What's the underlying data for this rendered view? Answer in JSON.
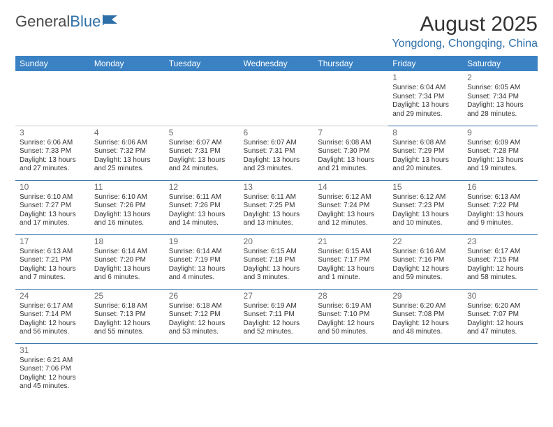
{
  "logo": {
    "part1": "General",
    "part2": "Blue"
  },
  "header": {
    "title": "August 2025",
    "subtitle": "Yongdong, Chongqing, China"
  },
  "calendar": {
    "type": "table",
    "header_bg": "#3b82c4",
    "header_text_color": "#ffffff",
    "cell_border_color": "#2f6fa8",
    "font_family": "Arial",
    "columns": [
      "Sunday",
      "Monday",
      "Tuesday",
      "Wednesday",
      "Thursday",
      "Friday",
      "Saturday"
    ],
    "weeks": [
      [
        null,
        null,
        null,
        null,
        null,
        {
          "n": "1",
          "sr": "Sunrise: 6:04 AM",
          "ss": "Sunset: 7:34 PM",
          "dl": "Daylight: 13 hours and 29 minutes."
        },
        {
          "n": "2",
          "sr": "Sunrise: 6:05 AM",
          "ss": "Sunset: 7:34 PM",
          "dl": "Daylight: 13 hours and 28 minutes."
        }
      ],
      [
        {
          "n": "3",
          "sr": "Sunrise: 6:06 AM",
          "ss": "Sunset: 7:33 PM",
          "dl": "Daylight: 13 hours and 27 minutes."
        },
        {
          "n": "4",
          "sr": "Sunrise: 6:06 AM",
          "ss": "Sunset: 7:32 PM",
          "dl": "Daylight: 13 hours and 25 minutes."
        },
        {
          "n": "5",
          "sr": "Sunrise: 6:07 AM",
          "ss": "Sunset: 7:31 PM",
          "dl": "Daylight: 13 hours and 24 minutes."
        },
        {
          "n": "6",
          "sr": "Sunrise: 6:07 AM",
          "ss": "Sunset: 7:31 PM",
          "dl": "Daylight: 13 hours and 23 minutes."
        },
        {
          "n": "7",
          "sr": "Sunrise: 6:08 AM",
          "ss": "Sunset: 7:30 PM",
          "dl": "Daylight: 13 hours and 21 minutes."
        },
        {
          "n": "8",
          "sr": "Sunrise: 6:08 AM",
          "ss": "Sunset: 7:29 PM",
          "dl": "Daylight: 13 hours and 20 minutes."
        },
        {
          "n": "9",
          "sr": "Sunrise: 6:09 AM",
          "ss": "Sunset: 7:28 PM",
          "dl": "Daylight: 13 hours and 19 minutes."
        }
      ],
      [
        {
          "n": "10",
          "sr": "Sunrise: 6:10 AM",
          "ss": "Sunset: 7:27 PM",
          "dl": "Daylight: 13 hours and 17 minutes."
        },
        {
          "n": "11",
          "sr": "Sunrise: 6:10 AM",
          "ss": "Sunset: 7:26 PM",
          "dl": "Daylight: 13 hours and 16 minutes."
        },
        {
          "n": "12",
          "sr": "Sunrise: 6:11 AM",
          "ss": "Sunset: 7:26 PM",
          "dl": "Daylight: 13 hours and 14 minutes."
        },
        {
          "n": "13",
          "sr": "Sunrise: 6:11 AM",
          "ss": "Sunset: 7:25 PM",
          "dl": "Daylight: 13 hours and 13 minutes."
        },
        {
          "n": "14",
          "sr": "Sunrise: 6:12 AM",
          "ss": "Sunset: 7:24 PM",
          "dl": "Daylight: 13 hours and 12 minutes."
        },
        {
          "n": "15",
          "sr": "Sunrise: 6:12 AM",
          "ss": "Sunset: 7:23 PM",
          "dl": "Daylight: 13 hours and 10 minutes."
        },
        {
          "n": "16",
          "sr": "Sunrise: 6:13 AM",
          "ss": "Sunset: 7:22 PM",
          "dl": "Daylight: 13 hours and 9 minutes."
        }
      ],
      [
        {
          "n": "17",
          "sr": "Sunrise: 6:13 AM",
          "ss": "Sunset: 7:21 PM",
          "dl": "Daylight: 13 hours and 7 minutes."
        },
        {
          "n": "18",
          "sr": "Sunrise: 6:14 AM",
          "ss": "Sunset: 7:20 PM",
          "dl": "Daylight: 13 hours and 6 minutes."
        },
        {
          "n": "19",
          "sr": "Sunrise: 6:14 AM",
          "ss": "Sunset: 7:19 PM",
          "dl": "Daylight: 13 hours and 4 minutes."
        },
        {
          "n": "20",
          "sr": "Sunrise: 6:15 AM",
          "ss": "Sunset: 7:18 PM",
          "dl": "Daylight: 13 hours and 3 minutes."
        },
        {
          "n": "21",
          "sr": "Sunrise: 6:15 AM",
          "ss": "Sunset: 7:17 PM",
          "dl": "Daylight: 13 hours and 1 minute."
        },
        {
          "n": "22",
          "sr": "Sunrise: 6:16 AM",
          "ss": "Sunset: 7:16 PM",
          "dl": "Daylight: 12 hours and 59 minutes."
        },
        {
          "n": "23",
          "sr": "Sunrise: 6:17 AM",
          "ss": "Sunset: 7:15 PM",
          "dl": "Daylight: 12 hours and 58 minutes."
        }
      ],
      [
        {
          "n": "24",
          "sr": "Sunrise: 6:17 AM",
          "ss": "Sunset: 7:14 PM",
          "dl": "Daylight: 12 hours and 56 minutes."
        },
        {
          "n": "25",
          "sr": "Sunrise: 6:18 AM",
          "ss": "Sunset: 7:13 PM",
          "dl": "Daylight: 12 hours and 55 minutes."
        },
        {
          "n": "26",
          "sr": "Sunrise: 6:18 AM",
          "ss": "Sunset: 7:12 PM",
          "dl": "Daylight: 12 hours and 53 minutes."
        },
        {
          "n": "27",
          "sr": "Sunrise: 6:19 AM",
          "ss": "Sunset: 7:11 PM",
          "dl": "Daylight: 12 hours and 52 minutes."
        },
        {
          "n": "28",
          "sr": "Sunrise: 6:19 AM",
          "ss": "Sunset: 7:10 PM",
          "dl": "Daylight: 12 hours and 50 minutes."
        },
        {
          "n": "29",
          "sr": "Sunrise: 6:20 AM",
          "ss": "Sunset: 7:08 PM",
          "dl": "Daylight: 12 hours and 48 minutes."
        },
        {
          "n": "30",
          "sr": "Sunrise: 6:20 AM",
          "ss": "Sunset: 7:07 PM",
          "dl": "Daylight: 12 hours and 47 minutes."
        }
      ],
      [
        {
          "n": "31",
          "sr": "Sunrise: 6:21 AM",
          "ss": "Sunset: 7:06 PM",
          "dl": "Daylight: 12 hours and 45 minutes."
        },
        null,
        null,
        null,
        null,
        null,
        null
      ]
    ]
  }
}
